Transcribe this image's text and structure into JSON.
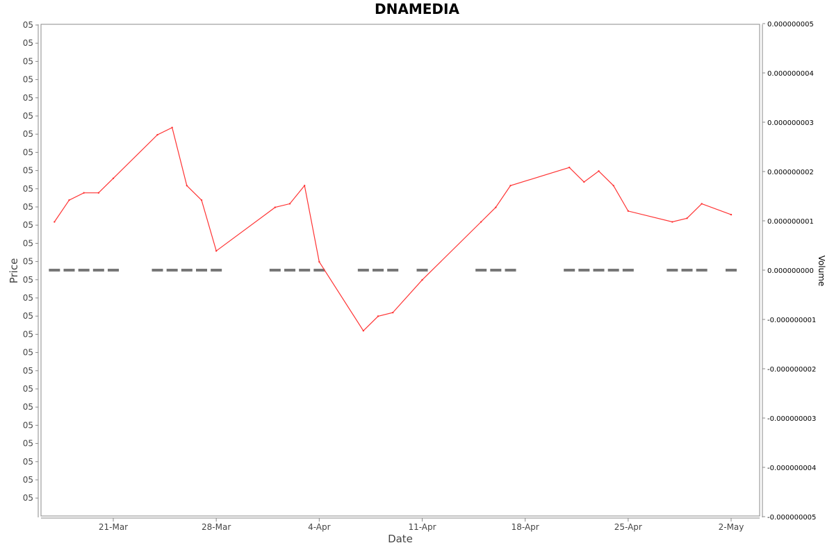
{
  "chart_data": {
    "type": "line",
    "title": "DNAMEDIA",
    "xlabel": "Date",
    "ylabel": "Price",
    "y2label": "Volume",
    "x_ticks": [
      "21-Mar",
      "28-Mar",
      "4-Apr",
      "11-Apr",
      "18-Apr",
      "25-Apr",
      "2-May"
    ],
    "x_tick_dates": [
      21,
      28,
      35,
      42,
      49,
      56,
      63
    ],
    "y_tick_labels": [
      "05",
      "05",
      "05",
      "05",
      "05",
      "05",
      "05",
      "05",
      "05",
      "05",
      "05",
      "05",
      "05",
      "05",
      "05",
      "05",
      "05",
      "05",
      "05",
      "05",
      "05",
      "05",
      "05",
      "05",
      "05",
      "05",
      "05"
    ],
    "y2_ticks": [
      "0.000000005",
      "0.000000004",
      "0.000000003",
      "0.000000002",
      "0.000000001",
      "0.000000000",
      "-0.000000001",
      "-0.000000002",
      "-0.000000003",
      "-0.000000004",
      "-0.000000005"
    ],
    "y2_values": [
      5,
      4,
      3,
      2,
      1,
      0,
      -1,
      -2,
      -3,
      -4,
      -5
    ],
    "y2lim": [
      -5,
      5
    ],
    "grid": false,
    "series": [
      {
        "kind": "price",
        "color": "#ff3333",
        "x": [
          17,
          18,
          19,
          20,
          21,
          24,
          25,
          26,
          27,
          28,
          32,
          33,
          34,
          35,
          38,
          39,
          40,
          42,
          46,
          47,
          48,
          52,
          53,
          54,
          55,
          56,
          59,
          60,
          61,
          63
        ],
        "values": [
          0.44,
          0.47,
          0.48,
          0.48,
          0.5,
          0.56,
          0.57,
          0.49,
          0.47,
          0.4,
          0.46,
          0.465,
          0.49,
          0.385,
          0.29,
          0.31,
          0.315,
          0.36,
          0.44,
          0.46,
          0.49,
          0.515,
          0.495,
          0.51,
          0.49,
          0.455,
          0.44,
          0.445,
          0.465,
          0.45
        ]
      },
      {
        "kind": "volume",
        "color": "#777777",
        "x": [
          17,
          18,
          19,
          20,
          21,
          24,
          25,
          26,
          27,
          28,
          32,
          33,
          34,
          35,
          38,
          39,
          40,
          42,
          46,
          47,
          48,
          52,
          53,
          54,
          55,
          56,
          59,
          60,
          61,
          63
        ],
        "values": [
          0,
          0,
          0,
          0,
          0,
          0,
          0,
          0,
          0,
          0,
          0,
          0,
          0,
          0,
          0,
          0,
          0,
          0,
          0,
          0,
          0,
          0,
          0,
          0,
          0,
          0,
          0,
          0,
          0,
          0
        ]
      }
    ]
  }
}
